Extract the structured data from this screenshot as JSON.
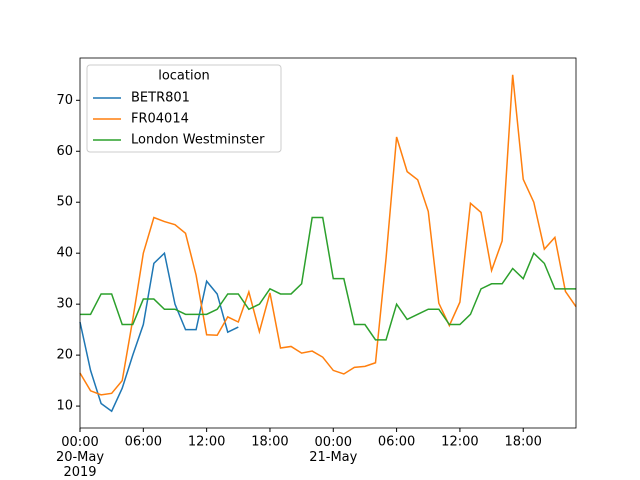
{
  "chart_data": {
    "type": "line",
    "legend_title": "location",
    "legend": "upper left",
    "x": [
      "2019-05-20 00:00",
      "2019-05-20 01:00",
      "2019-05-20 02:00",
      "2019-05-20 03:00",
      "2019-05-20 04:00",
      "2019-05-20 05:00",
      "2019-05-20 06:00",
      "2019-05-20 07:00",
      "2019-05-20 08:00",
      "2019-05-20 09:00",
      "2019-05-20 10:00",
      "2019-05-20 11:00",
      "2019-05-20 12:00",
      "2019-05-20 13:00",
      "2019-05-20 14:00",
      "2019-05-20 15:00",
      "2019-05-20 16:00",
      "2019-05-20 17:00",
      "2019-05-20 18:00",
      "2019-05-20 19:00",
      "2019-05-20 20:00",
      "2019-05-20 21:00",
      "2019-05-20 22:00",
      "2019-05-20 23:00",
      "2019-05-21 00:00",
      "2019-05-21 01:00",
      "2019-05-21 02:00",
      "2019-05-21 03:00",
      "2019-05-21 04:00",
      "2019-05-21 05:00",
      "2019-05-21 06:00",
      "2019-05-21 07:00",
      "2019-05-21 08:00",
      "2019-05-21 09:00",
      "2019-05-21 10:00",
      "2019-05-21 11:00",
      "2019-05-21 12:00",
      "2019-05-21 13:00",
      "2019-05-21 14:00",
      "2019-05-21 15:00",
      "2019-05-21 16:00",
      "2019-05-21 17:00",
      "2019-05-21 18:00",
      "2019-05-21 19:00",
      "2019-05-21 20:00",
      "2019-05-21 21:00",
      "2019-05-21 22:00",
      "2019-05-21 23:00"
    ],
    "series": [
      {
        "name": "BETR801",
        "color": "#1f77b4",
        "values": [
          26.5,
          17,
          10.5,
          9,
          13.5,
          20,
          26,
          38,
          40,
          30,
          25,
          25,
          34.5,
          32,
          24.5,
          25.5,
          null,
          null,
          null,
          null,
          null,
          null,
          null,
          null,
          null,
          null,
          null,
          null,
          null,
          null,
          null,
          null,
          null,
          null,
          null,
          null,
          null,
          null,
          null,
          null,
          null,
          null,
          null,
          null,
          null,
          null,
          null,
          null
        ]
      },
      {
        "name": "FR04014",
        "color": "#ff7f0e",
        "values": [
          16.5,
          13,
          12.2,
          12.5,
          15,
          27,
          40,
          47,
          46.2,
          45.6,
          43.9,
          35.7,
          24,
          23.9,
          27.5,
          26.5,
          32.4,
          24.6,
          32.2,
          21.4,
          21.7,
          20.4,
          20.8,
          19.6,
          17,
          16.3,
          17.6,
          17.8,
          18.5,
          39,
          62.8,
          56,
          54.4,
          48.2,
          30.2,
          25.8,
          30.4,
          49.8,
          48,
          36.6,
          42.4,
          75,
          54.5,
          50,
          40.8,
          43.1,
          32.5,
          29.5
        ]
      },
      {
        "name": "London Westminster",
        "color": "#2ca02c",
        "values": [
          28,
          28,
          32,
          32,
          26,
          26,
          31,
          31,
          29,
          29,
          28,
          28,
          28,
          29,
          32,
          32,
          29,
          30,
          33,
          32,
          32,
          34,
          47,
          47,
          35,
          35,
          26,
          26,
          23,
          23,
          30,
          27,
          28,
          29,
          29,
          26,
          26,
          28,
          33,
          34,
          34,
          37,
          35,
          40,
          38,
          33,
          33,
          33
        ]
      }
    ],
    "xlim": [
      "2019-05-20 00:00",
      "2019-05-21 23:00"
    ],
    "xticks": [
      {
        "value": "2019-05-20 00:00",
        "label": "00:00\n20-May\n2019"
      },
      {
        "value": "2019-05-20 06:00",
        "label": "06:00"
      },
      {
        "value": "2019-05-20 12:00",
        "label": "12:00"
      },
      {
        "value": "2019-05-20 18:00",
        "label": "18:00"
      },
      {
        "value": "2019-05-21 00:00",
        "label": "00:00\n21-May"
      },
      {
        "value": "2019-05-21 06:00",
        "label": "06:00"
      },
      {
        "value": "2019-05-21 12:00",
        "label": "12:00"
      },
      {
        "value": "2019-05-21 18:00",
        "label": "18:00"
      }
    ],
    "ylim": [
      5.7,
      78.3
    ],
    "yticks": [
      10,
      20,
      30,
      40,
      50,
      60,
      70
    ]
  }
}
